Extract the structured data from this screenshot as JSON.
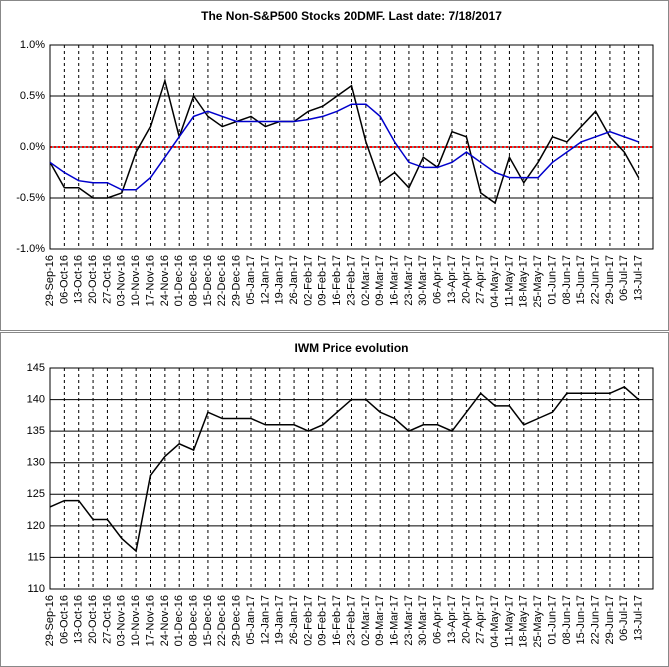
{
  "chart_data": [
    {
      "type": "line",
      "title": "The Non-S&P500 Stocks 20DMF. Last date: 7/18/2017",
      "categories": [
        "29-Sep-16",
        "06-Oct-16",
        "13-Oct-16",
        "20-Oct-16",
        "27-Oct-16",
        "03-Nov-16",
        "10-Nov-16",
        "17-Nov-16",
        "24-Nov-16",
        "01-Dec-16",
        "08-Dec-16",
        "15-Dec-16",
        "22-Dec-16",
        "29-Dec-16",
        "05-Jan-17",
        "12-Jan-17",
        "19-Jan-17",
        "26-Jan-17",
        "02-Feb-17",
        "09-Feb-17",
        "16-Feb-17",
        "23-Feb-17",
        "02-Mar-17",
        "09-Mar-17",
        "16-Mar-17",
        "23-Mar-17",
        "30-Mar-17",
        "06-Apr-17",
        "13-Apr-17",
        "20-Apr-17",
        "27-Apr-17",
        "04-May-17",
        "11-May-17",
        "18-May-17",
        "25-May-17",
        "01-Jun-17",
        "08-Jun-17",
        "15-Jun-17",
        "22-Jun-17",
        "29-Jun-17",
        "06-Jul-17",
        "13-Jul-17"
      ],
      "series": [
        {
          "color": "#000000",
          "values": [
            -0.15,
            -0.4,
            -0.4,
            -0.5,
            -0.5,
            -0.45,
            -0.05,
            0.2,
            0.65,
            0.1,
            0.5,
            0.3,
            0.2,
            0.25,
            0.3,
            0.2,
            0.25,
            0.25,
            0.35,
            0.4,
            0.5,
            0.6,
            0.05,
            -0.35,
            -0.25,
            -0.4,
            -0.1,
            -0.2,
            0.15,
            0.1,
            -0.45,
            -0.55,
            -0.1,
            -0.35,
            -0.15,
            0.1,
            0.05,
            0.2,
            0.35,
            0.1,
            -0.05,
            -0.3
          ]
        },
        {
          "color": "#0000cc",
          "values": [
            -0.15,
            -0.25,
            -0.33,
            -0.35,
            -0.35,
            -0.42,
            -0.42,
            -0.3,
            -0.1,
            0.1,
            0.3,
            0.35,
            0.3,
            0.25,
            0.25,
            0.25,
            0.25,
            0.25,
            0.27,
            0.3,
            0.35,
            0.42,
            0.42,
            0.3,
            0.05,
            -0.15,
            -0.2,
            -0.2,
            -0.15,
            -0.05,
            -0.15,
            -0.25,
            -0.3,
            -0.3,
            -0.3,
            -0.15,
            -0.05,
            0.05,
            0.1,
            0.15,
            0.1,
            0.05
          ]
        }
      ],
      "ylim": [
        -1,
        1
      ],
      "yticks": [
        {
          "value": -1,
          "label": "-1.0%"
        },
        {
          "value": -0.5,
          "label": "-0.5%"
        },
        {
          "value": 0,
          "label": "0.0%"
        },
        {
          "value": 0.5,
          "label": "0.5%"
        },
        {
          "value": 1,
          "label": "1.0%"
        }
      ],
      "grid": true,
      "reference_line": {
        "value": 0,
        "color": "#ff0000"
      }
    },
    {
      "type": "line",
      "title": "IWM Price evolution",
      "categories": [
        "29-Sep-16",
        "06-Oct-16",
        "13-Oct-16",
        "20-Oct-16",
        "27-Oct-16",
        "03-Nov-16",
        "10-Nov-16",
        "17-Nov-16",
        "24-Nov-16",
        "01-Dec-16",
        "08-Dec-16",
        "15-Dec-16",
        "22-Dec-16",
        "29-Dec-16",
        "05-Jan-17",
        "12-Jan-17",
        "19-Jan-17",
        "26-Jan-17",
        "02-Feb-17",
        "09-Feb-17",
        "16-Feb-17",
        "23-Feb-17",
        "02-Mar-17",
        "09-Mar-17",
        "16-Mar-17",
        "23-Mar-17",
        "30-Mar-17",
        "06-Apr-17",
        "13-Apr-17",
        "20-Apr-17",
        "27-Apr-17",
        "04-May-17",
        "11-May-17",
        "18-May-17",
        "25-May-17",
        "01-Jun-17",
        "08-Jun-17",
        "15-Jun-17",
        "22-Jun-17",
        "29-Jun-17",
        "06-Jul-17",
        "13-Jul-17"
      ],
      "series": [
        {
          "color": "#000000",
          "values": [
            123,
            124,
            124,
            121,
            121,
            118,
            116,
            128,
            131,
            133,
            132,
            138,
            137,
            137,
            137,
            136,
            136,
            136,
            135,
            136,
            138,
            140,
            140,
            138,
            137,
            135,
            136,
            136,
            135,
            138,
            141,
            139,
            139,
            136,
            137,
            138,
            141,
            141,
            141,
            141,
            142,
            140
          ]
        }
      ],
      "ylim": [
        110,
        145
      ],
      "yticks": [
        110,
        115,
        120,
        125,
        130,
        135,
        140,
        145
      ],
      "grid": true
    }
  ]
}
